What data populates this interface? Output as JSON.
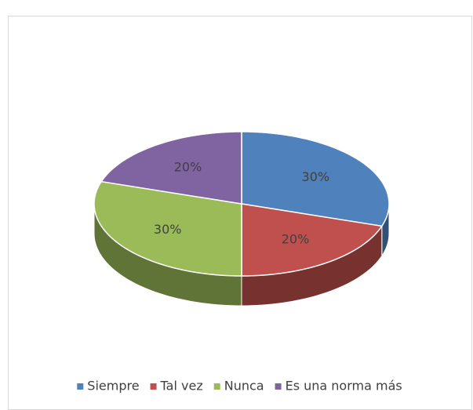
{
  "chart_data": {
    "type": "pie",
    "categories": [
      "Siempre",
      "Tal vez",
      "Nunca",
      "Es una norma más"
    ],
    "values": [
      30,
      20,
      30,
      20
    ],
    "value_labels": [
      "30%",
      "20%",
      "30%",
      "20%"
    ],
    "colors": [
      "#4f81bd",
      "#c0504d",
      "#9bbb59",
      "#8064a2"
    ],
    "legend": "bottom",
    "three_d": true
  }
}
